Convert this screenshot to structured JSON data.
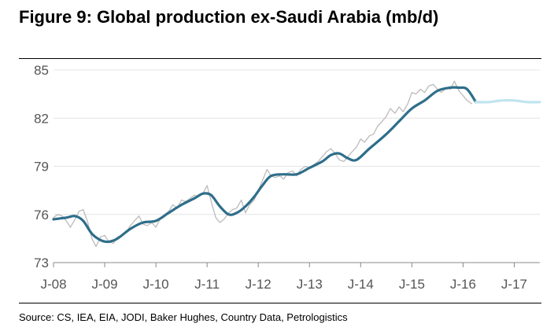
{
  "title": "Figure 9: Global production ex-Saudi Arabia (mb/d)",
  "source": "Source: CS, IEA, EIA, JODI, Baker Hughes, Country Data, Petrologistics",
  "chart_data": {
    "type": "line",
    "title": "Figure 9: Global production ex-Saudi Arabia (mb/d)",
    "xlabel": "",
    "ylabel": "",
    "x_ticks": [
      "J-08",
      "J-09",
      "J-10",
      "J-11",
      "J-12",
      "J-13",
      "J-14",
      "J-15",
      "J-16",
      "J-17"
    ],
    "y_ticks": [
      "73",
      "76",
      "79",
      "82",
      "85"
    ],
    "xlim": [
      2008.0,
      2017.5
    ],
    "ylim": [
      73,
      85
    ],
    "grid": "horizontal",
    "series": [
      {
        "role": "monthly",
        "color": "#bbbbbb",
        "x": [
          2008.0,
          2008.08,
          2008.17,
          2008.25,
          2008.33,
          2008.42,
          2008.5,
          2008.58,
          2008.67,
          2008.75,
          2008.83,
          2008.92,
          2009.0,
          2009.08,
          2009.17,
          2009.25,
          2009.33,
          2009.42,
          2009.5,
          2009.58,
          2009.67,
          2009.75,
          2009.83,
          2009.92,
          2010.0,
          2010.08,
          2010.17,
          2010.25,
          2010.33,
          2010.42,
          2010.5,
          2010.58,
          2010.67,
          2010.75,
          2010.83,
          2010.92,
          2011.0,
          2011.08,
          2011.17,
          2011.25,
          2011.33,
          2011.42,
          2011.5,
          2011.58,
          2011.67,
          2011.75,
          2011.83,
          2011.92,
          2012.0,
          2012.08,
          2012.17,
          2012.25,
          2012.33,
          2012.42,
          2012.5,
          2012.58,
          2012.67,
          2012.75,
          2012.83,
          2012.92,
          2013.0,
          2013.08,
          2013.17,
          2013.25,
          2013.33,
          2013.42,
          2013.5,
          2013.58,
          2013.67,
          2013.75,
          2013.83,
          2013.92,
          2014.0,
          2014.08,
          2014.17,
          2014.25,
          2014.33,
          2014.42,
          2014.5,
          2014.58,
          2014.67,
          2014.75,
          2014.83,
          2014.92,
          2015.0,
          2015.08,
          2015.17,
          2015.25,
          2015.33,
          2015.42,
          2015.5,
          2015.58,
          2015.67,
          2015.75,
          2015.83,
          2015.92,
          2016.0,
          2016.08,
          2016.17
        ],
        "y": [
          75.8,
          76.0,
          75.9,
          75.6,
          75.2,
          75.7,
          76.2,
          76.3,
          75.5,
          74.5,
          74.0,
          74.6,
          74.7,
          74.3,
          74.2,
          74.6,
          74.7,
          74.9,
          75.3,
          75.6,
          75.9,
          75.4,
          75.3,
          75.5,
          75.2,
          75.7,
          76.0,
          76.2,
          76.6,
          76.4,
          76.9,
          76.8,
          77.0,
          77.2,
          77.1,
          77.3,
          77.8,
          76.8,
          75.8,
          75.5,
          75.7,
          76.1,
          76.3,
          76.4,
          76.9,
          76.1,
          76.6,
          76.9,
          77.5,
          78.1,
          78.8,
          78.4,
          78.3,
          78.4,
          78.2,
          78.6,
          78.7,
          78.4,
          78.8,
          79.0,
          78.9,
          79.1,
          79.3,
          79.6,
          79.9,
          80.1,
          79.8,
          79.4,
          79.3,
          79.6,
          79.9,
          80.2,
          80.7,
          80.5,
          80.9,
          81.0,
          81.5,
          81.8,
          82.1,
          82.6,
          82.3,
          82.7,
          82.4,
          82.9,
          83.6,
          83.5,
          83.8,
          83.6,
          84.0,
          84.1,
          83.8,
          83.6,
          83.9,
          83.8,
          84.3,
          83.7,
          83.4,
          83.1,
          82.9
        ]
      },
      {
        "role": "smoothed",
        "color": "#2e6e8a",
        "x": [
          2008.0,
          2008.25,
          2008.42,
          2008.58,
          2008.75,
          2008.92,
          2009.08,
          2009.25,
          2009.5,
          2009.75,
          2010.0,
          2010.25,
          2010.5,
          2010.75,
          2010.92,
          2011.08,
          2011.25,
          2011.42,
          2011.58,
          2011.75,
          2011.92,
          2012.08,
          2012.25,
          2012.5,
          2012.75,
          2013.0,
          2013.25,
          2013.42,
          2013.58,
          2013.75,
          2013.92,
          2014.17,
          2014.5,
          2014.75,
          2015.0,
          2015.25,
          2015.5,
          2015.75,
          2015.92,
          2016.08,
          2016.25
        ],
        "y": [
          75.7,
          75.8,
          75.9,
          75.6,
          74.8,
          74.4,
          74.3,
          74.5,
          75.1,
          75.5,
          75.6,
          76.1,
          76.6,
          77.0,
          77.3,
          77.2,
          76.5,
          76.0,
          76.1,
          76.5,
          77.1,
          77.8,
          78.4,
          78.5,
          78.5,
          78.9,
          79.3,
          79.7,
          79.8,
          79.5,
          79.4,
          80.1,
          81.0,
          81.8,
          82.6,
          83.1,
          83.7,
          83.9,
          83.9,
          83.8,
          83.0
        ]
      },
      {
        "role": "forecast",
        "color": "#bfe4ef",
        "x": [
          2016.25,
          2016.5,
          2016.75,
          2017.0,
          2017.25,
          2017.5
        ],
        "y": [
          83.0,
          83.0,
          83.1,
          83.1,
          83.0,
          83.0
        ]
      }
    ]
  }
}
